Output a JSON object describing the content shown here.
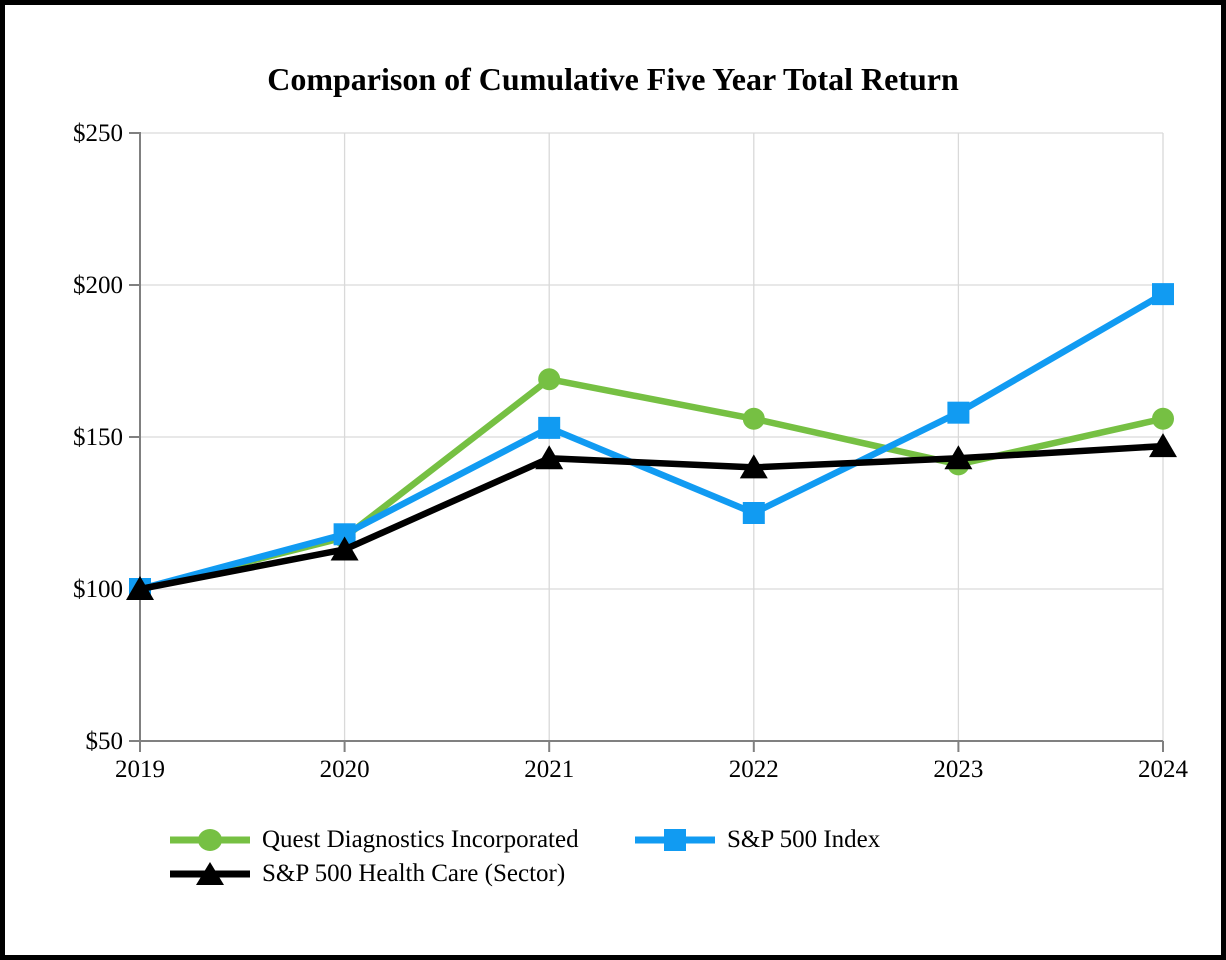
{
  "chart_data": {
    "type": "line",
    "title": "Comparison of Cumulative Five Year Total Return",
    "x_labels": [
      "2019",
      "2020",
      "2021",
      "2022",
      "2023",
      "2024"
    ],
    "y_ticks": [
      50,
      100,
      150,
      200,
      250
    ],
    "y_tick_labels": [
      "$50",
      "$100",
      "$150",
      "$200",
      "$250"
    ],
    "ylim": [
      50,
      250
    ],
    "grid": true,
    "legend_position": "bottom-left",
    "series": [
      {
        "name": "Quest Diagnostics Incorporated",
        "marker": "circle",
        "color": "#76C043",
        "values": [
          100,
          117,
          169,
          156,
          141,
          156
        ]
      },
      {
        "name": "S&P 500 Index",
        "marker": "square",
        "color": "#119BF2",
        "values": [
          100,
          118,
          153,
          125,
          158,
          197
        ]
      },
      {
        "name": "S&P 500 Health Care (Sector)",
        "marker": "triangle",
        "color": "#000000",
        "values": [
          100,
          113,
          143,
          140,
          143,
          147
        ]
      }
    ],
    "colors": {
      "gridline": "#D9D9D9",
      "axis": "#808080",
      "text": "#000000",
      "background": "#FFFFFF",
      "frame_border": "#000000"
    }
  }
}
